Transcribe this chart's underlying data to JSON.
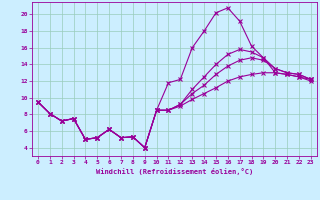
{
  "xlabel": "Windchill (Refroidissement éolien,°C)",
  "bg_color": "#cceeff",
  "line_color": "#990099",
  "grid_color": "#99ccbb",
  "xlim": [
    -0.5,
    23.5
  ],
  "ylim": [
    3.0,
    21.5
  ],
  "yticks": [
    4,
    6,
    8,
    10,
    12,
    14,
    16,
    18,
    20
  ],
  "xticks": [
    0,
    1,
    2,
    3,
    4,
    5,
    6,
    7,
    8,
    9,
    10,
    11,
    12,
    13,
    14,
    15,
    16,
    17,
    18,
    19,
    20,
    21,
    22,
    23
  ],
  "series": [
    [
      9.5,
      8.1,
      7.2,
      7.5,
      5.0,
      5.2,
      6.2,
      5.2,
      5.3,
      4.0,
      8.5,
      11.8,
      12.2,
      16.0,
      18.0,
      20.2,
      20.8,
      19.2,
      16.2,
      14.8,
      13.0,
      12.8,
      12.5,
      12.0
    ],
    [
      9.5,
      8.1,
      7.2,
      7.5,
      5.0,
      5.2,
      6.2,
      5.2,
      5.3,
      4.0,
      8.5,
      8.5,
      9.2,
      11.0,
      12.5,
      14.0,
      15.2,
      15.8,
      15.5,
      14.8,
      13.5,
      13.0,
      12.8,
      12.2
    ],
    [
      9.5,
      8.1,
      7.2,
      7.5,
      5.0,
      5.2,
      6.2,
      5.2,
      5.3,
      4.0,
      8.5,
      8.5,
      9.2,
      10.5,
      11.5,
      12.8,
      13.8,
      14.5,
      14.8,
      14.5,
      13.5,
      13.0,
      12.8,
      12.2
    ],
    [
      9.5,
      8.1,
      7.2,
      7.5,
      5.0,
      5.2,
      6.2,
      5.2,
      5.3,
      4.0,
      8.5,
      8.5,
      9.0,
      9.8,
      10.5,
      11.2,
      12.0,
      12.5,
      12.8,
      13.0,
      13.0,
      12.8,
      12.5,
      12.2
    ]
  ]
}
